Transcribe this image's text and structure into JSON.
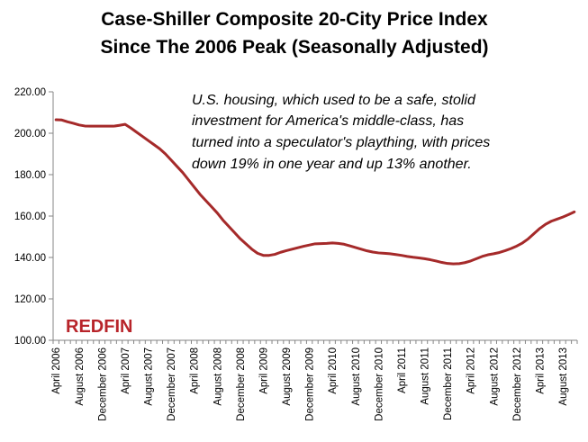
{
  "chart_data": {
    "type": "line",
    "title": [
      "Case-Shiller Composite 20-City Price Index",
      "Since The 2006 Peak (Seasonally Adjusted)"
    ],
    "xlabel": "",
    "ylabel": "",
    "ylim": [
      100,
      220
    ],
    "yticks": [
      "100.00",
      "120.00",
      "140.00",
      "160.00",
      "180.00",
      "200.00",
      "220.00"
    ],
    "x_start": "April 2006",
    "x_end": "October 2013",
    "xticks": [
      {
        "label": "April 2006",
        "index": 0
      },
      {
        "label": "August 2006",
        "index": 4
      },
      {
        "label": "December 2006",
        "index": 8
      },
      {
        "label": "April 2007",
        "index": 12
      },
      {
        "label": "August 2007",
        "index": 16
      },
      {
        "label": "December 2007",
        "index": 20
      },
      {
        "label": "April 2008",
        "index": 24
      },
      {
        "label": "August 2008",
        "index": 28
      },
      {
        "label": "December 2008",
        "index": 32
      },
      {
        "label": "April 2009",
        "index": 36
      },
      {
        "label": "August 2009",
        "index": 40
      },
      {
        "label": "December 2009",
        "index": 44
      },
      {
        "label": "April 2010",
        "index": 48
      },
      {
        "label": "August 2010",
        "index": 52
      },
      {
        "label": "December 2010",
        "index": 56
      },
      {
        "label": "April 2011",
        "index": 60
      },
      {
        "label": "August 2011",
        "index": 64
      },
      {
        "label": "December 2011",
        "index": 68
      },
      {
        "label": "April 2012",
        "index": 72
      },
      {
        "label": "August 2012",
        "index": 76
      },
      {
        "label": "December 2012",
        "index": 80
      },
      {
        "label": "April 2013",
        "index": 84
      },
      {
        "label": "August 2013",
        "index": 88
      }
    ],
    "series": [
      {
        "color": "#a52a2a",
        "values": [
          206.5,
          206.4,
          205.5,
          204.8,
          204.0,
          203.5,
          203.4,
          203.4,
          203.4,
          203.4,
          203.4,
          203.8,
          204.3,
          202.5,
          200.5,
          198.5,
          196.5,
          194.5,
          192.5,
          190.0,
          187.0,
          184.0,
          181.0,
          177.5,
          174.0,
          170.5,
          167.5,
          164.5,
          161.5,
          158.0,
          155.0,
          152.0,
          149.0,
          146.5,
          144.0,
          142.0,
          141.0,
          141.0,
          141.5,
          142.5,
          143.3,
          144.0,
          144.7,
          145.4,
          146.0,
          146.6,
          146.7,
          146.8,
          147.0,
          146.8,
          146.4,
          145.6,
          144.8,
          144.0,
          143.2,
          142.6,
          142.2,
          142.0,
          141.8,
          141.4,
          141.0,
          140.5,
          140.1,
          139.8,
          139.4,
          138.9,
          138.3,
          137.6,
          137.1,
          136.9,
          137.0,
          137.5,
          138.3,
          139.4,
          140.5,
          141.3,
          141.8,
          142.4,
          143.3,
          144.3,
          145.5,
          147.0,
          149.0,
          151.5,
          154.0,
          156.0,
          157.5,
          158.5,
          159.5,
          160.7,
          162.0
        ]
      }
    ],
    "annotation": [
      "U.S. housing, which used to be a safe, stolid",
      "investment for America's middle-class, has",
      "turned into a speculator's plaything, with prices",
      "down 19% in one year and up 13% another."
    ],
    "logo": "REDFIN",
    "grid": false,
    "legend": "none"
  }
}
